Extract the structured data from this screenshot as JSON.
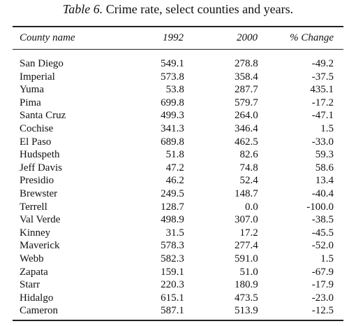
{
  "caption": {
    "label": "Table 6.",
    "text": "Crime rate, select counties and years."
  },
  "columns": {
    "name": "County name",
    "y1992": "1992",
    "y2000": "2000",
    "change": "% Change"
  },
  "rows": [
    {
      "name": "San Diego",
      "y1992": "549.1",
      "y2000": "278.8",
      "change": "-49.2"
    },
    {
      "name": "Imperial",
      "y1992": "573.8",
      "y2000": "358.4",
      "change": "-37.5"
    },
    {
      "name": "Yuma",
      "y1992": "53.8",
      "y2000": "287.7",
      "change": "435.1"
    },
    {
      "name": "Pima",
      "y1992": "699.8",
      "y2000": "579.7",
      "change": "-17.2"
    },
    {
      "name": "Santa Cruz",
      "y1992": "499.3",
      "y2000": "264.0",
      "change": "-47.1"
    },
    {
      "name": "Cochise",
      "y1992": "341.3",
      "y2000": "346.4",
      "change": "1.5"
    },
    {
      "name": "El Paso",
      "y1992": "689.8",
      "y2000": "462.5",
      "change": "-33.0"
    },
    {
      "name": "Hudspeth",
      "y1992": "51.8",
      "y2000": "82.6",
      "change": "59.3"
    },
    {
      "name": "Jeff Davis",
      "y1992": "47.2",
      "y2000": "74.8",
      "change": "58.6"
    },
    {
      "name": "Presidio",
      "y1992": "46.2",
      "y2000": "52.4",
      "change": "13.4"
    },
    {
      "name": "Brewster",
      "y1992": "249.5",
      "y2000": "148.7",
      "change": "-40.4"
    },
    {
      "name": "Terrell",
      "y1992": "128.7",
      "y2000": "0.0",
      "change": "-100.0"
    },
    {
      "name": "Val Verde",
      "y1992": "498.9",
      "y2000": "307.0",
      "change": "-38.5"
    },
    {
      "name": "Kinney",
      "y1992": "31.5",
      "y2000": "17.2",
      "change": "-45.5"
    },
    {
      "name": "Maverick",
      "y1992": "578.3",
      "y2000": "277.4",
      "change": "-52.0"
    },
    {
      "name": "Webb",
      "y1992": "582.3",
      "y2000": "591.0",
      "change": "1.5"
    },
    {
      "name": "Zapata",
      "y1992": "159.1",
      "y2000": "51.0",
      "change": "-67.9"
    },
    {
      "name": "Starr",
      "y1992": "220.3",
      "y2000": "180.9",
      "change": "-17.9"
    },
    {
      "name": "Hidalgo",
      "y1992": "615.1",
      "y2000": "473.5",
      "change": "-23.0"
    },
    {
      "name": "Cameron",
      "y1992": "587.1",
      "y2000": "513.9",
      "change": "-12.5"
    }
  ]
}
